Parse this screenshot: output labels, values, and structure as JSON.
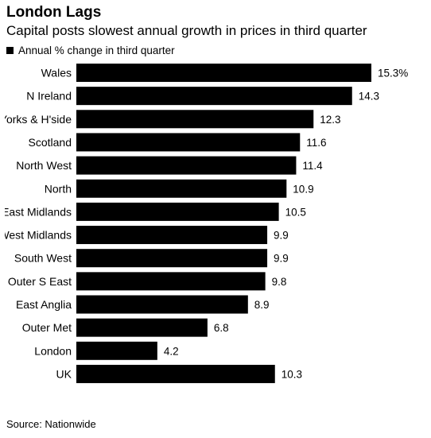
{
  "chart_data": {
    "type": "bar",
    "orientation": "horizontal",
    "title": "London Lags",
    "subtitle": "Capital posts slowest annual growth in prices in third quarter",
    "legend": [
      {
        "label": "Annual % change in third quarter",
        "color": "#000000"
      }
    ],
    "legend_position": "top-left",
    "categories": [
      "Wales",
      "N Ireland",
      "Yorks & H'side",
      "Scotland",
      "North West",
      "North",
      "East Midlands",
      "West Midlands",
      "South West",
      "Outer S East",
      "East Anglia",
      "Outer Met",
      "London",
      "UK"
    ],
    "values": [
      15.3,
      14.3,
      12.3,
      11.6,
      11.4,
      10.9,
      10.5,
      9.9,
      9.9,
      9.8,
      8.9,
      6.8,
      4.2,
      10.3
    ],
    "value_labels": [
      "15.3%",
      "14.3",
      "12.3",
      "11.6",
      "11.4",
      "10.9",
      "10.5",
      "9.9",
      "9.9",
      "9.8",
      "8.9",
      "6.8",
      "4.2",
      "10.3"
    ],
    "xlim": [
      0,
      15.3
    ],
    "grid": false,
    "bar_color": "#000000",
    "source": "Source: Nationwide"
  }
}
